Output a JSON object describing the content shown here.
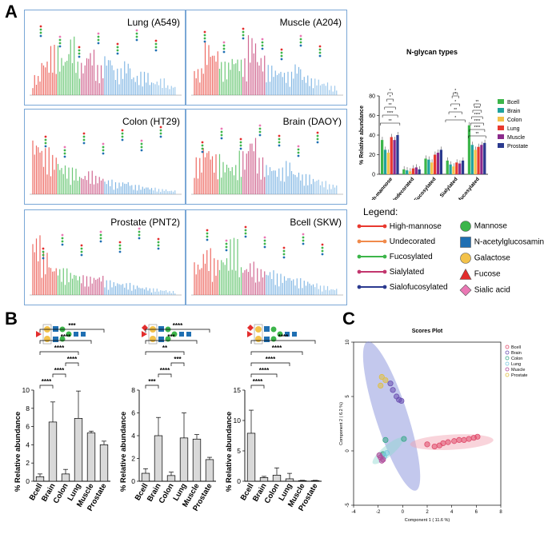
{
  "panels": {
    "a": "A",
    "b": "B",
    "c": "C"
  },
  "spectra": [
    {
      "label": "Lung (A549)"
    },
    {
      "label": "Muscle (A204)"
    },
    {
      "label": "Colon (HT29)"
    },
    {
      "label": "Brain (DAOY)"
    },
    {
      "label": "Prostate (PNT2)"
    },
    {
      "label": "Bcell (SKW)"
    }
  ],
  "legend": {
    "title": "Legend:",
    "lines": [
      {
        "label": "High-mannose",
        "color": "#e8392f"
      },
      {
        "label": "Undecorated",
        "color": "#f08a4b"
      },
      {
        "label": "Fucosylated",
        "color": "#3cb54a"
      },
      {
        "label": "Sialylated",
        "color": "#c2366e"
      },
      {
        "label": "Sialofucosylated",
        "color": "#2b3a8f"
      }
    ],
    "symbols": [
      {
        "label": "Mannose",
        "shape": "circle",
        "color": "#3cb54a"
      },
      {
        "label": "N-acetylglucosamine",
        "shape": "square",
        "color": "#1f6fb2"
      },
      {
        "label": "Galactose",
        "shape": "circle",
        "color": "#f3c24a"
      },
      {
        "label": "Fucose",
        "shape": "triangle",
        "color": "#e32d2d"
      },
      {
        "label": "Sialic acid",
        "shape": "diamond",
        "color": "#ea78b4"
      }
    ]
  },
  "chart_data": [
    {
      "id": "a-types",
      "type": "bar",
      "title": "N-glycan types",
      "xlabel": "",
      "ylabel": "% Relative abundance",
      "ylim": [
        0,
        80
      ],
      "yticks": [
        0,
        20,
        40,
        60,
        80
      ],
      "categories": [
        "High-mannose",
        "Undecorated",
        "Fucosylated",
        "Sialylated",
        "Sialofucosylated"
      ],
      "series": [
        {
          "name": "Bcell",
          "color": "#3cb54a",
          "values": [
            35,
            5,
            16,
            14,
            50
          ]
        },
        {
          "name": "Brain",
          "color": "#20a39e",
          "values": [
            25,
            4,
            15,
            10,
            30
          ]
        },
        {
          "name": "Colon",
          "color": "#f3c24a",
          "values": [
            22,
            3,
            12,
            8,
            25
          ]
        },
        {
          "name": "Lung",
          "color": "#e8392f",
          "values": [
            38,
            6,
            20,
            12,
            28
          ]
        },
        {
          "name": "Muscle",
          "color": "#8b2a8b",
          "values": [
            35,
            7,
            22,
            11,
            30
          ]
        },
        {
          "name": "Prostate",
          "color": "#2b3a8f",
          "values": [
            40,
            5,
            25,
            14,
            32
          ]
        }
      ],
      "significance": [
        "**",
        "****",
        "**",
        "*",
        "*",
        "*",
        "**",
        "*",
        "*",
        "*",
        "**",
        "****",
        "****",
        "****",
        "****",
        "**"
      ]
    },
    {
      "id": "b1",
      "type": "bar",
      "title": "",
      "xlabel": "",
      "ylabel": "% Relative abundance",
      "ylim": [
        0,
        10
      ],
      "yticks": [
        0,
        2,
        4,
        6,
        8,
        10
      ],
      "categories": [
        "Bcell",
        "Brain",
        "Colon",
        "Lung",
        "Muscle",
        "Prostate"
      ],
      "values": [
        0.5,
        6.5,
        0.8,
        6.9,
        5.3,
        4.0
      ],
      "errors": [
        0.3,
        2.2,
        0.5,
        3.0,
        0.2,
        0.4
      ],
      "significance": [
        "****",
        "****",
        "****",
        "****",
        "****",
        "***"
      ]
    },
    {
      "id": "b2",
      "type": "bar",
      "title": "",
      "xlabel": "",
      "ylabel": "% Relative abundance",
      "ylim": [
        0,
        8
      ],
      "yticks": [
        0,
        2,
        4,
        6,
        8
      ],
      "categories": [
        "Bcell",
        "Brain",
        "Colon",
        "Lung",
        "Muscle",
        "Prostate"
      ],
      "values": [
        0.7,
        4.0,
        0.5,
        3.8,
        3.7,
        1.9
      ],
      "errors": [
        0.4,
        1.6,
        0.3,
        2.2,
        0.4,
        0.2
      ],
      "significance": [
        "***",
        "****",
        "***",
        "**",
        "***",
        "****"
      ]
    },
    {
      "id": "b3",
      "type": "bar",
      "title": "",
      "xlabel": "",
      "ylabel": "% Relative abundance",
      "ylim": [
        0,
        15
      ],
      "yticks": [
        0,
        5,
        10,
        15
      ],
      "categories": [
        "Bcell",
        "Brain",
        "Colon",
        "Lung",
        "Muscle",
        "Prostate"
      ],
      "values": [
        7.9,
        0.6,
        1.0,
        0.4,
        0.1,
        0.1
      ],
      "errors": [
        3.8,
        0.2,
        1.2,
        0.9,
        0.05,
        0.05
      ],
      "significance": [
        "****",
        "****",
        "****",
        "****",
        "****"
      ]
    },
    {
      "id": "c-scores",
      "type": "scatter",
      "title": "Scores Plot",
      "xlabel": "Component 1 ( 11.6 %)",
      "ylabel": "Component 2 ( 6.2 %)",
      "xlim": [
        -4,
        8
      ],
      "ylim": [
        -5,
        10
      ],
      "xticks": [
        -4,
        -2,
        0,
        2,
        4,
        6,
        8
      ],
      "yticks": [
        -5,
        0,
        5,
        10
      ],
      "series": [
        {
          "name": "Bcell",
          "color": "#e04a6a",
          "points": [
            [
              2.0,
              0.6
            ],
            [
              2.6,
              0.4
            ],
            [
              3.0,
              0.5
            ],
            [
              3.3,
              0.7
            ],
            [
              3.7,
              0.8
            ],
            [
              4.2,
              0.9
            ],
            [
              4.6,
              1.0
            ],
            [
              5.0,
              1.0
            ],
            [
              5.4,
              1.1
            ],
            [
              5.8,
              1.2
            ],
            [
              6.1,
              1.3
            ]
          ]
        },
        {
          "name": "Brain",
          "color": "#6a4fb0",
          "points": [
            [
              -1.0,
              6.2
            ],
            [
              -0.8,
              5.6
            ],
            [
              -0.5,
              5.0
            ],
            [
              -0.3,
              4.7
            ],
            [
              -0.1,
              4.6
            ]
          ]
        },
        {
          "name": "Colon",
          "color": "#3aa88a",
          "points": [
            [
              -1.4,
              1.0
            ],
            [
              0.1,
              1.1
            ],
            [
              -1.6,
              -0.3
            ]
          ]
        },
        {
          "name": "Lung",
          "color": "#7ac8e0",
          "points": [
            [
              -1.5,
              -0.5
            ],
            [
              -1.3,
              -0.2
            ]
          ]
        },
        {
          "name": "Muscle",
          "color": "#b04a9a",
          "points": [
            [
              -1.8,
              -0.6
            ],
            [
              -1.6,
              -0.8
            ],
            [
              -1.9,
              -0.4
            ],
            [
              -1.7,
              -0.9
            ]
          ]
        },
        {
          "name": "Prostate",
          "color": "#e0c040",
          "points": [
            [
              -1.7,
              6.8
            ],
            [
              -1.4,
              6.5
            ],
            [
              -1.8,
              6.0
            ]
          ]
        }
      ]
    }
  ]
}
